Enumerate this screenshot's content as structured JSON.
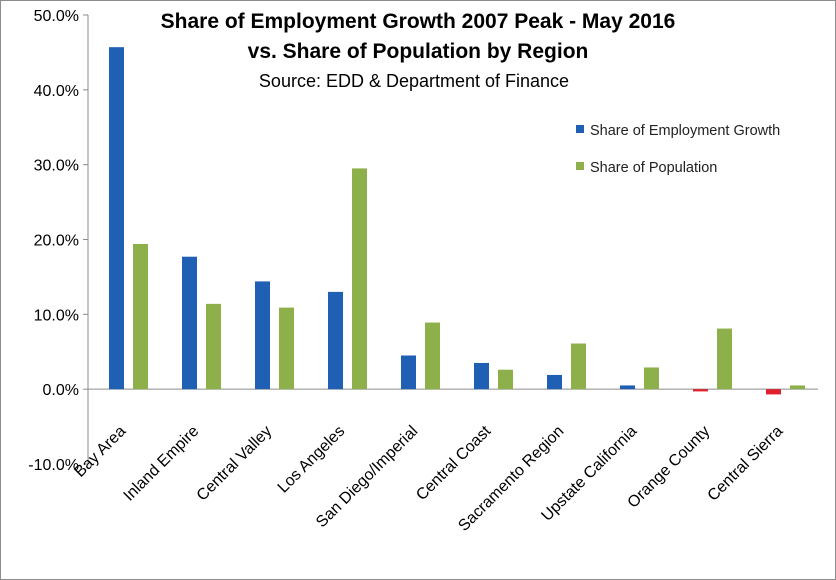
{
  "chart_data": {
    "type": "bar",
    "title": "Share of Employment Growth 2007 Peak - May 2016",
    "subtitle": "vs. Share of Population by Region",
    "source": "Source:  EDD & Department of Finance",
    "xlabel": "",
    "ylabel": "",
    "ylim": [
      -0.1,
      0.5
    ],
    "yticks": [
      "-10.0%",
      "0.0%",
      "10.0%",
      "20.0%",
      "30.0%",
      "40.0%",
      "50.0%"
    ],
    "ytick_values": [
      -0.1,
      0.0,
      0.1,
      0.2,
      0.3,
      0.4,
      0.5
    ],
    "grid": false,
    "legend_position": "top-right",
    "categories": [
      "Bay Area",
      "Inland Empire",
      "Central Valley",
      "Los Angeles",
      "San Diego/Imperial",
      "Central Coast",
      "Sacramento Region",
      "Upstate California",
      "Orange County",
      "Central Sierra"
    ],
    "series": [
      {
        "name": "Share of Employment Growth",
        "color": "#1f5fb4",
        "negative_color": "#e0202c",
        "values": [
          0.457,
          0.177,
          0.144,
          0.13,
          0.045,
          0.035,
          0.019,
          0.005,
          -0.003,
          -0.007
        ]
      },
      {
        "name": "Share of Population",
        "color": "#8eb04b",
        "values": [
          0.194,
          0.114,
          0.109,
          0.295,
          0.089,
          0.026,
          0.061,
          0.029,
          0.081,
          0.005
        ]
      }
    ]
  }
}
